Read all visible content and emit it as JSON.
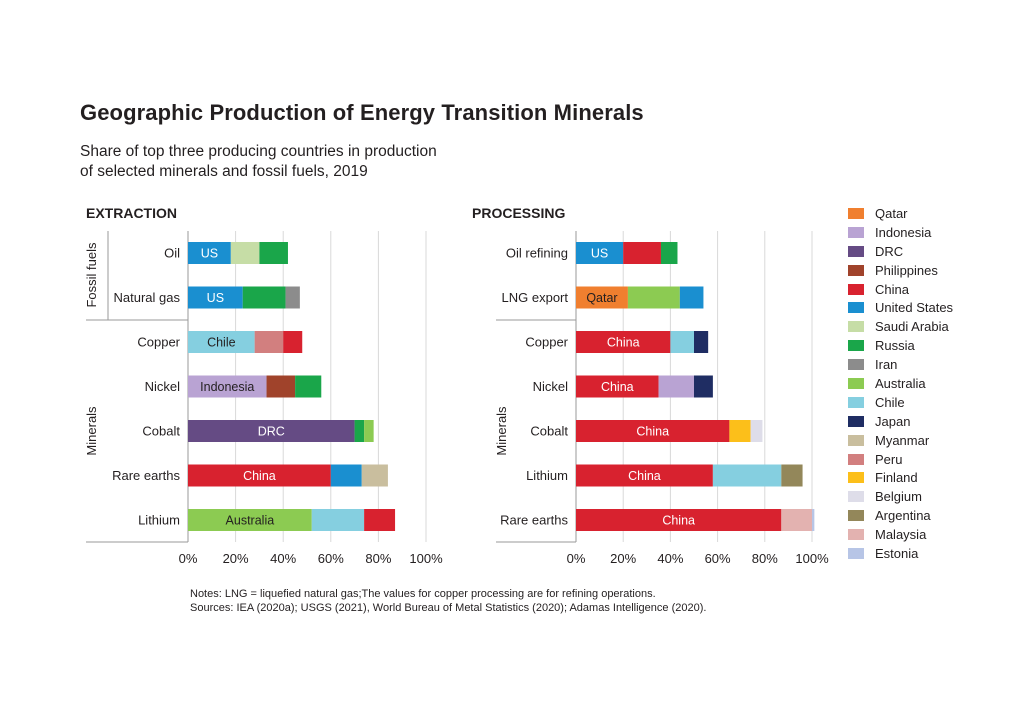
{
  "title": "Geographic Production of Energy Transition Minerals",
  "subtitle_lines": [
    "Share of top three producing countries in production",
    "of selected minerals and fossil fuels, 2019"
  ],
  "colors": {
    "Qatar": "#f07f2f",
    "Indonesia": "#b9a3d3",
    "DRC": "#654b84",
    "Philippines": "#a0432b",
    "China": "#d8222f",
    "United States": "#1a8fd0",
    "Saudi Arabia": "#c6dda6",
    "Russia": "#1aa64a",
    "Iran": "#8c8c8c",
    "Australia": "#8ccb52",
    "Chile": "#85cfe0",
    "Japan": "#1f2d63",
    "Myanmar": "#c9be9e",
    "Peru": "#d27f7f",
    "Finland": "#fcbf1a",
    "Belgium": "#dedde9",
    "Argentina": "#93875a",
    "Malaysia": "#e3b2b0",
    "Estonia": "#b7c5e6"
  },
  "legend": [
    "Qatar",
    "Indonesia",
    "DRC",
    "Philippines",
    "China",
    "United States",
    "Saudi Arabia",
    "Russia",
    "Iran",
    "Australia",
    "Chile",
    "Japan",
    "Myanmar",
    "Peru",
    "Finland",
    "Belgium",
    "Argentina",
    "Malaysia",
    "Estonia"
  ],
  "chart_data": [
    {
      "type": "bar",
      "orientation": "horizontal",
      "stacked": true,
      "title": "EXTRACTION",
      "xlim": [
        0,
        100
      ],
      "x_ticks": [
        "0%",
        "20%",
        "40%",
        "60%",
        "80%",
        "100%"
      ],
      "groups": [
        {
          "label": "Fossil fuels",
          "categories": [
            "Oil",
            "Natural gas"
          ]
        },
        {
          "label": "Minerals",
          "categories": [
            "Copper",
            "Nickel",
            "Cobalt",
            "Rare earths",
            "Lithium"
          ]
        }
      ],
      "bars": [
        {
          "category": "Oil",
          "segments": [
            {
              "country": "United States",
              "value": 18,
              "label": "US"
            },
            {
              "country": "Saudi Arabia",
              "value": 12
            },
            {
              "country": "Russia",
              "value": 12
            }
          ]
        },
        {
          "category": "Natural gas",
          "segments": [
            {
              "country": "United States",
              "value": 23,
              "label": "US"
            },
            {
              "country": "Russia",
              "value": 18
            },
            {
              "country": "Iran",
              "value": 6
            }
          ]
        },
        {
          "category": "Copper",
          "segments": [
            {
              "country": "Chile",
              "value": 28,
              "label": "Chile"
            },
            {
              "country": "Peru",
              "value": 12
            },
            {
              "country": "China",
              "value": 8
            }
          ]
        },
        {
          "category": "Nickel",
          "segments": [
            {
              "country": "Indonesia",
              "value": 33,
              "label": "Indonesia"
            },
            {
              "country": "Philippines",
              "value": 12
            },
            {
              "country": "Russia",
              "value": 11
            }
          ]
        },
        {
          "category": "Cobalt",
          "segments": [
            {
              "country": "DRC",
              "value": 70,
              "label": "DRC"
            },
            {
              "country": "Russia",
              "value": 4
            },
            {
              "country": "Australia",
              "value": 4
            }
          ]
        },
        {
          "category": "Rare earths",
          "segments": [
            {
              "country": "China",
              "value": 60,
              "label": "China"
            },
            {
              "country": "United States",
              "value": 13
            },
            {
              "country": "Myanmar",
              "value": 11
            }
          ]
        },
        {
          "category": "Lithium",
          "segments": [
            {
              "country": "Australia",
              "value": 52,
              "label": "Australia"
            },
            {
              "country": "Chile",
              "value": 22
            },
            {
              "country": "China",
              "value": 13
            }
          ]
        }
      ]
    },
    {
      "type": "bar",
      "orientation": "horizontal",
      "stacked": true,
      "title": "PROCESSING",
      "xlim": [
        0,
        100
      ],
      "x_ticks": [
        "0%",
        "20%",
        "40%",
        "60%",
        "80%",
        "100%"
      ],
      "groups": [
        {
          "label": "",
          "categories": [
            "Oil refining",
            "LNG export"
          ]
        },
        {
          "label": "Minerals",
          "categories": [
            "Copper",
            "Nickel",
            "Cobalt",
            "Lithium",
            "Rare earths"
          ]
        }
      ],
      "bars": [
        {
          "category": "Oil refining",
          "segments": [
            {
              "country": "United States",
              "value": 20,
              "label": "US"
            },
            {
              "country": "China",
              "value": 16
            },
            {
              "country": "Russia",
              "value": 7
            }
          ]
        },
        {
          "category": "LNG export",
          "segments": [
            {
              "country": "Qatar",
              "value": 22,
              "label": "Qatar"
            },
            {
              "country": "Australia",
              "value": 22
            },
            {
              "country": "United States",
              "value": 10
            }
          ]
        },
        {
          "category": "Copper",
          "segments": [
            {
              "country": "China",
              "value": 40,
              "label": "China"
            },
            {
              "country": "Chile",
              "value": 10
            },
            {
              "country": "Japan",
              "value": 6
            }
          ]
        },
        {
          "category": "Nickel",
          "segments": [
            {
              "country": "China",
              "value": 35,
              "label": "China"
            },
            {
              "country": "Indonesia",
              "value": 15
            },
            {
              "country": "Japan",
              "value": 8
            }
          ]
        },
        {
          "category": "Cobalt",
          "segments": [
            {
              "country": "China",
              "value": 65,
              "label": "China"
            },
            {
              "country": "Finland",
              "value": 9
            },
            {
              "country": "Belgium",
              "value": 5
            }
          ]
        },
        {
          "category": "Lithium",
          "segments": [
            {
              "country": "China",
              "value": 58,
              "label": "China"
            },
            {
              "country": "Chile",
              "value": 29
            },
            {
              "country": "Argentina",
              "value": 9
            }
          ]
        },
        {
          "category": "Rare earths",
          "segments": [
            {
              "country": "China",
              "value": 87,
              "label": "China"
            },
            {
              "country": "Malaysia",
              "value": 13
            },
            {
              "country": "Estonia",
              "value": 1
            }
          ]
        }
      ]
    }
  ],
  "notes": [
    "Notes: LNG = liquefied natural gas;The values for copper processing are for refining operations.",
    "Sources: IEA (2020a); USGS (2021), World Bureau of Metal Statistics (2020); Adamas Intelligence (2020)."
  ]
}
